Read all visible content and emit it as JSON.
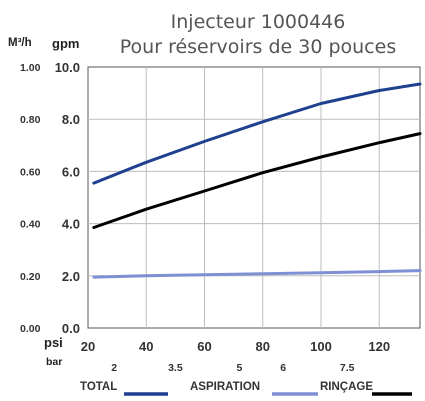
{
  "chart_data": {
    "type": "line",
    "title": "Injecteur 1000446",
    "subtitle": "Pour réservoirs de 30 pouces",
    "y_unit_left": "M³/h",
    "y_unit_right": "gpm",
    "x_unit_top": "psi",
    "x_unit_bottom": "bar",
    "xlim": [
      20,
      134
    ],
    "ylim": [
      0,
      10
    ],
    "x_ticks": [
      20,
      40,
      60,
      80,
      100,
      120
    ],
    "x_tick_labels": [
      "20",
      "40",
      "60",
      "80",
      "100",
      "120"
    ],
    "y_ticks": [
      0,
      2,
      4,
      6,
      8,
      10
    ],
    "y_tick_labels": [
      "0.0",
      "2.0",
      "4.0",
      "6.0",
      "8.0",
      "10.0"
    ],
    "m3h_ticks": [
      {
        "label": "0.00",
        "gpm": 0
      },
      {
        "label": "0.20",
        "gpm": 2
      },
      {
        "label": "0.40",
        "gpm": 4
      },
      {
        "label": "0.60",
        "gpm": 6
      },
      {
        "label": "0.80",
        "gpm": 8
      },
      {
        "label": "1.00",
        "gpm": 10
      }
    ],
    "bar_ticks": [
      {
        "label": "2",
        "psi": 29
      },
      {
        "label": "3.5",
        "psi": 50
      },
      {
        "label": "5",
        "psi": 72
      },
      {
        "label": "6",
        "psi": 87
      },
      {
        "label": "7.5",
        "psi": 109
      }
    ],
    "grid": true,
    "legend_position": "bottom",
    "series": [
      {
        "name": "TOTAL",
        "color": "#1f3f8f",
        "x": [
          22,
          40,
          60,
          80,
          100,
          120,
          134
        ],
        "y": [
          5.55,
          6.35,
          7.15,
          7.9,
          8.6,
          9.1,
          9.35
        ]
      },
      {
        "name": "ASPIRATION",
        "color": "#7f8fd3",
        "x": [
          22,
          40,
          60,
          80,
          100,
          120,
          134
        ],
        "y": [
          1.95,
          2.0,
          2.04,
          2.08,
          2.12,
          2.16,
          2.2
        ]
      },
      {
        "name": "RINÇAGE",
        "color": "#000000",
        "x": [
          22,
          40,
          60,
          80,
          100,
          120,
          134
        ],
        "y": [
          3.85,
          4.55,
          5.25,
          5.95,
          6.55,
          7.1,
          7.45
        ]
      }
    ]
  }
}
